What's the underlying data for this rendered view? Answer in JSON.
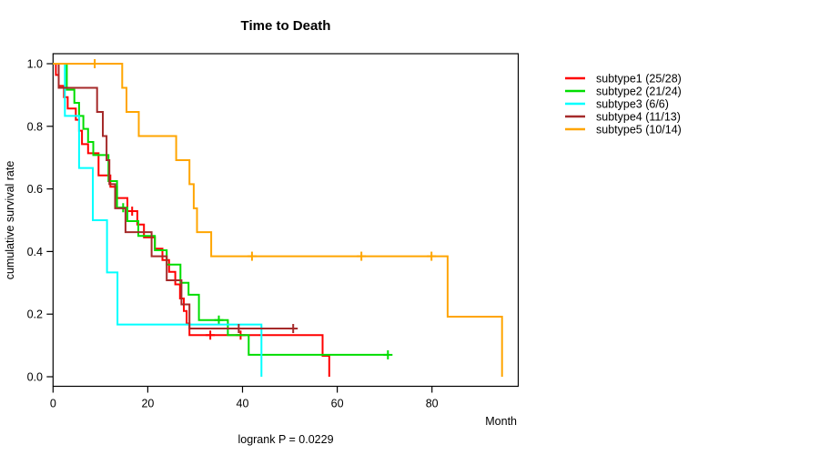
{
  "title": "Time to Death",
  "footer": {
    "text": "logrank P = 0.0229"
  },
  "axes": {
    "x_label": "Month",
    "y_label": "cumulative survival rate",
    "x_ticks": [
      0,
      20,
      40,
      60,
      80
    ],
    "y_ticks": [
      {
        "label": "0.0",
        "value": 0.0
      },
      {
        "label": "0.2",
        "value": 0.2
      },
      {
        "label": "0.4",
        "value": 0.4
      },
      {
        "label": "0.6",
        "value": 0.6
      },
      {
        "label": "0.8",
        "value": 0.8
      },
      {
        "label": "1.0",
        "value": 1.0
      }
    ],
    "x_range": [
      0,
      98
    ],
    "y_range": [
      0.0,
      1.0
    ],
    "grid": false
  },
  "chart_data": {
    "type": "line",
    "subtype": "kaplan-meier-step-curves",
    "title": "Time to Death",
    "xlabel": "Month",
    "ylabel": "cumulative survival rate",
    "annotation": "logrank P = 0.0229",
    "legend_position": "right-outside",
    "x_unit": "months",
    "series": [
      {
        "name": "subtype1 (25/28)",
        "color": "#ff0000",
        "steps": [
          [
            0,
            1.0
          ],
          [
            0.6,
            0.964
          ],
          [
            1.2,
            0.929
          ],
          [
            2.3,
            0.893
          ],
          [
            3.1,
            0.857
          ],
          [
            4.8,
            0.821
          ],
          [
            5.5,
            0.786
          ],
          [
            6.1,
            0.743
          ],
          [
            7.4,
            0.714
          ],
          [
            9.6,
            0.643
          ],
          [
            12.1,
            0.607
          ],
          [
            13.5,
            0.571
          ],
          [
            15.7,
            0.529
          ],
          [
            17.8,
            0.486
          ],
          [
            19.2,
            0.445
          ],
          [
            21.5,
            0.409
          ],
          [
            23.1,
            0.373
          ],
          [
            24.5,
            0.335
          ],
          [
            25.8,
            0.295
          ],
          [
            26.8,
            0.25
          ],
          [
            27.6,
            0.21
          ],
          [
            28.2,
            0.17
          ],
          [
            28.8,
            0.133
          ],
          [
            56.9,
            0.067
          ],
          [
            58.3,
            0.0
          ]
        ],
        "censors": [
          [
            16.7,
            0.529
          ],
          [
            33.2,
            0.133
          ],
          [
            39.6,
            0.133
          ]
        ],
        "end_month": 58.3
      },
      {
        "name": "subtype2 (21/24)",
        "color": "#00dd00",
        "steps": [
          [
            0,
            1.0
          ],
          [
            2.9,
            0.917
          ],
          [
            4.5,
            0.875
          ],
          [
            5.5,
            0.833
          ],
          [
            6.4,
            0.792
          ],
          [
            7.4,
            0.75
          ],
          [
            8.5,
            0.708
          ],
          [
            11.7,
            0.625
          ],
          [
            13.5,
            0.54
          ],
          [
            15.7,
            0.497
          ],
          [
            18.0,
            0.45
          ],
          [
            21.5,
            0.404
          ],
          [
            24.0,
            0.358
          ],
          [
            26.9,
            0.3
          ],
          [
            28.6,
            0.262
          ],
          [
            30.8,
            0.181
          ],
          [
            36.9,
            0.133
          ],
          [
            41.3,
            0.07
          ]
        ],
        "censors": [
          [
            14.8,
            0.54
          ],
          [
            35.0,
            0.181
          ],
          [
            70.7,
            0.07
          ]
        ],
        "end_month": 70.7
      },
      {
        "name": "subtype3 (6/6)",
        "color": "#00ffff",
        "steps": [
          [
            0,
            1.0
          ],
          [
            2.5,
            0.833
          ],
          [
            5.5,
            0.667
          ],
          [
            8.4,
            0.5
          ],
          [
            11.4,
            0.333
          ],
          [
            13.6,
            0.167
          ],
          [
            44.0,
            0.0
          ]
        ],
        "censors": [],
        "end_month": 44.0
      },
      {
        "name": "subtype4 (11/13)",
        "color": "#a52a2a",
        "steps": [
          [
            0,
            1.0
          ],
          [
            1.2,
            0.923
          ],
          [
            9.3,
            0.846
          ],
          [
            10.5,
            0.769
          ],
          [
            11.3,
            0.692
          ],
          [
            11.9,
            0.615
          ],
          [
            13.1,
            0.538
          ],
          [
            15.3,
            0.462
          ],
          [
            20.8,
            0.385
          ],
          [
            24.0,
            0.308
          ],
          [
            27.1,
            0.231
          ],
          [
            28.8,
            0.154
          ]
        ],
        "censors": [
          [
            39.2,
            0.154
          ],
          [
            50.7,
            0.154
          ]
        ],
        "end_month": 50.7
      },
      {
        "name": "subtype5 (10/14)",
        "color": "#ffa500",
        "steps": [
          [
            0,
            1.0
          ],
          [
            14.6,
            0.923
          ],
          [
            15.5,
            0.846
          ],
          [
            18.1,
            0.769
          ],
          [
            26.0,
            0.692
          ],
          [
            28.8,
            0.615
          ],
          [
            29.7,
            0.538
          ],
          [
            30.4,
            0.462
          ],
          [
            33.4,
            0.385
          ],
          [
            83.3,
            0.192
          ],
          [
            94.8,
            0.0
          ]
        ],
        "censors": [
          [
            8.8,
            1.0
          ],
          [
            42.0,
            0.385
          ],
          [
            65.1,
            0.385
          ],
          [
            79.9,
            0.385
          ]
        ],
        "end_month": 94.8
      }
    ]
  }
}
